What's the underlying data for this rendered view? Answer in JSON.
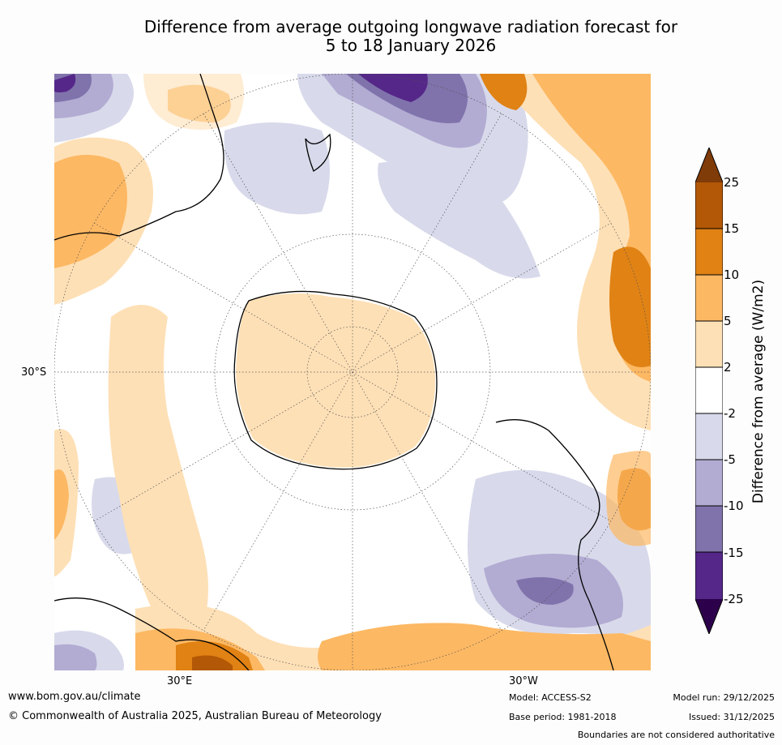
{
  "title_line1": "Difference from average outgoing longwave radiation forecast for",
  "title_line2": "5 to 18 January 2026",
  "map": {
    "projection": "south-polar-stereographic",
    "lat_label": "30°S",
    "lon_labels": [
      "30°E",
      "30°W"
    ],
    "ocean_color": "#ffffff",
    "coast_color": "#000000",
    "grid_color": "#555555"
  },
  "colorbar": {
    "title": "Difference from average (W/m2)",
    "bins": [
      {
        "range": "below -25",
        "color": "#2d004b"
      },
      {
        "range": "-25 to -15",
        "color": "#542788"
      },
      {
        "range": "-15 to -10",
        "color": "#8073ac"
      },
      {
        "range": "-10 to -5",
        "color": "#b2abd2"
      },
      {
        "range": "-5 to -2",
        "color": "#d8daeb"
      },
      {
        "range": "-2 to 2",
        "color": "#ffffff"
      },
      {
        "range": "2 to 5",
        "color": "#fee0b6"
      },
      {
        "range": "5 to 10",
        "color": "#fdb863"
      },
      {
        "range": "10 to 15",
        "color": "#e08214"
      },
      {
        "range": "15 to 25",
        "color": "#b35806"
      },
      {
        "range": "above 25",
        "color": "#7f3b08"
      }
    ],
    "ticks": [
      "25",
      "15",
      "10",
      "5",
      "2",
      "-2",
      "-5",
      "-10",
      "-15",
      "-25"
    ]
  },
  "footer": {
    "url": "www.bom.gov.au/climate",
    "copyright": "© Commonwealth of Australia 2025, Australian Bureau of Meteorology",
    "model": "Model: ACCESS-S2",
    "base_period": "Base period: 1981-2018",
    "model_run": "Model run: 29/12/2025",
    "issued": "Issued: 31/12/2025",
    "disclaimer": "Boundaries are not considered authoritative"
  }
}
